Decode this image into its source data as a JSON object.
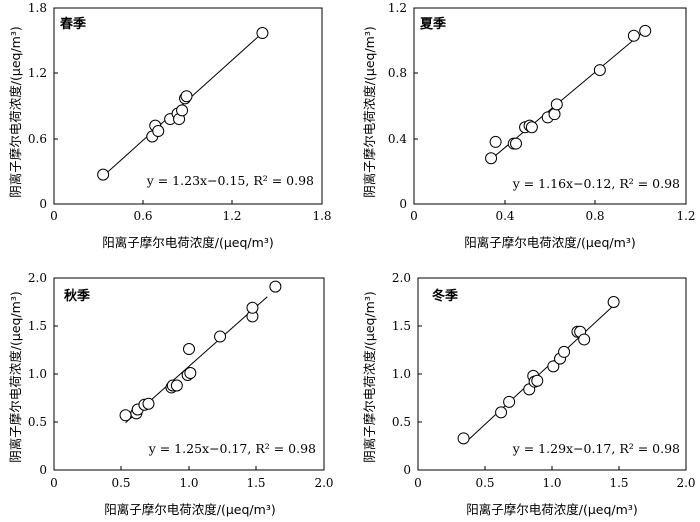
{
  "chart_data": [
    {
      "type": "scatter",
      "panel_label": "春季",
      "xlabel": "阳离子摩尔电荷浓度/(μeq/m³)",
      "ylabel": "阴离子摩尔电荷浓度/(μeq/m³)",
      "xlim": [
        0,
        1.8
      ],
      "ylim": [
        0,
        1.8
      ],
      "xticks": [
        "0",
        "0.6",
        "1.2",
        "1.8"
      ],
      "yticks": [
        "0",
        "0.6",
        "1.2",
        "1.8"
      ],
      "equation": "y = 1.23x−0.15,  R² = 0.98",
      "fit": {
        "slope": 1.23,
        "intercept": -0.15,
        "x_range": [
          0.33,
          1.4
        ]
      },
      "points": [
        [
          0.33,
          0.27
        ],
        [
          0.66,
          0.62
        ],
        [
          0.68,
          0.72
        ],
        [
          0.7,
          0.67
        ],
        [
          0.78,
          0.78
        ],
        [
          0.83,
          0.83
        ],
        [
          0.84,
          0.78
        ],
        [
          0.86,
          0.86
        ],
        [
          0.88,
          0.97
        ],
        [
          0.89,
          0.99
        ],
        [
          1.4,
          1.57
        ]
      ]
    },
    {
      "type": "scatter",
      "panel_label": "夏季",
      "xlabel": "阳离子摩尔电荷浓度/(μeq/m³)",
      "ylabel": "阴离子摩尔电荷浓度/(μeq/m³)",
      "xlim": [
        0,
        1.2
      ],
      "ylim": [
        0,
        1.2
      ],
      "xticks": [
        "0",
        "0.4",
        "0.8",
        "1.2"
      ],
      "yticks": [
        "0",
        "0.4",
        "0.8",
        "1.2"
      ],
      "equation": "y = 1.16x−0.12,  R² = 0.98",
      "fit": {
        "slope": 1.16,
        "intercept": -0.12,
        "x_range": [
          0.34,
          1.02
        ]
      },
      "points": [
        [
          0.34,
          0.28
        ],
        [
          0.36,
          0.38
        ],
        [
          0.44,
          0.37
        ],
        [
          0.45,
          0.37
        ],
        [
          0.49,
          0.47
        ],
        [
          0.51,
          0.48
        ],
        [
          0.52,
          0.47
        ],
        [
          0.59,
          0.53
        ],
        [
          0.62,
          0.55
        ],
        [
          0.63,
          0.61
        ],
        [
          0.82,
          0.82
        ],
        [
          0.97,
          1.03
        ],
        [
          1.02,
          1.06
        ]
      ]
    },
    {
      "type": "scatter",
      "panel_label": "秋季",
      "xlabel": "阳离子摩尔电荷浓度/(μeq/m³)",
      "ylabel": "阴离子摩尔电荷浓度/(μeq/m³)",
      "xlim": [
        0,
        2.0
      ],
      "ylim": [
        0,
        2.0
      ],
      "xticks": [
        "0",
        "0.5",
        "1.0",
        "1.5",
        "2.0"
      ],
      "yticks": [
        "0",
        "0.5",
        "1.0",
        "1.5",
        "2.0"
      ],
      "equation": "y = 1.25x−0.17,  R² = 0.98",
      "fit": {
        "slope": 1.25,
        "intercept": -0.17,
        "x_range": [
          0.53,
          1.58
        ]
      },
      "points": [
        [
          0.53,
          0.57
        ],
        [
          0.61,
          0.59
        ],
        [
          0.62,
          0.63
        ],
        [
          0.67,
          0.68
        ],
        [
          0.7,
          0.69
        ],
        [
          0.87,
          0.86
        ],
        [
          0.88,
          0.88
        ],
        [
          0.91,
          0.88
        ],
        [
          0.99,
          0.99
        ],
        [
          1.01,
          1.01
        ],
        [
          1.0,
          1.26
        ],
        [
          1.23,
          1.39
        ],
        [
          1.47,
          1.6
        ],
        [
          1.47,
          1.69
        ],
        [
          1.64,
          1.91
        ]
      ]
    },
    {
      "type": "scatter",
      "panel_label": "冬季",
      "xlabel": "阳离子摩尔电荷浓度/(μeq/m³)",
      "ylabel": "阴离子摩尔电荷浓度/(μeq/m³)",
      "xlim": [
        0,
        2.0
      ],
      "ylim": [
        0,
        2.0
      ],
      "xticks": [
        "0",
        "0.5",
        "1.0",
        "1.5",
        "2.0"
      ],
      "yticks": [
        "0",
        "0.5",
        "1.0",
        "1.5",
        "2.0"
      ],
      "equation": "y = 1.29x−0.17,  R² = 0.98",
      "fit": {
        "slope": 1.29,
        "intercept": -0.17,
        "x_range": [
          0.34,
          1.48
        ]
      },
      "points": [
        [
          0.34,
          0.33
        ],
        [
          0.62,
          0.6
        ],
        [
          0.68,
          0.71
        ],
        [
          0.83,
          0.84
        ],
        [
          0.86,
          0.98
        ],
        [
          0.87,
          0.92
        ],
        [
          0.89,
          0.93
        ],
        [
          1.01,
          1.08
        ],
        [
          1.06,
          1.16
        ],
        [
          1.09,
          1.23
        ],
        [
          1.19,
          1.44
        ],
        [
          1.21,
          1.44
        ],
        [
          1.24,
          1.36
        ],
        [
          1.46,
          1.75
        ]
      ]
    }
  ]
}
